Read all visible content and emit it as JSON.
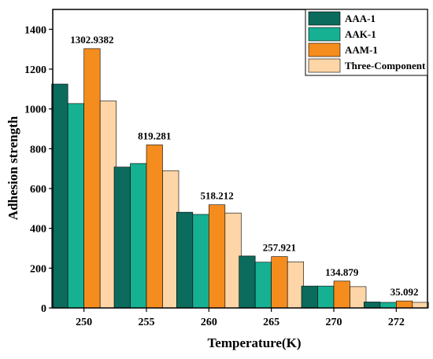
{
  "chart_data": {
    "type": "bar",
    "xlabel": "Temperature(K)",
    "ylabel": "Adhesion strength",
    "categories": [
      "250",
      "255",
      "260",
      "265",
      "270",
      "272"
    ],
    "ylim": [
      0,
      1500
    ],
    "yticks": [
      0,
      200,
      400,
      600,
      800,
      1000,
      1200,
      1400
    ],
    "series": [
      {
        "name": "AAA-1",
        "color": "#0b6b5c",
        "values": [
          1125,
          708,
          481,
          261,
          110,
          30
        ]
      },
      {
        "name": "AAK-1",
        "color": "#16b093",
        "values": [
          1027,
          726,
          470,
          230,
          110,
          28
        ]
      },
      {
        "name": "AAM-1",
        "color": "#f58c1e",
        "values": [
          1302.9382,
          819.281,
          518.212,
          257.921,
          134.879,
          35.092
        ]
      },
      {
        "name": "Three-Component",
        "color": "#fdd5a6",
        "values": [
          1040,
          690,
          477,
          232,
          107,
          28
        ]
      }
    ],
    "data_labels": [
      "1302.9382",
      "819.281",
      "518.212",
      "257.921",
      "134.879",
      "35.092"
    ],
    "data_label_series": "AAM-1",
    "legend_position": "top-right",
    "grid": false
  }
}
